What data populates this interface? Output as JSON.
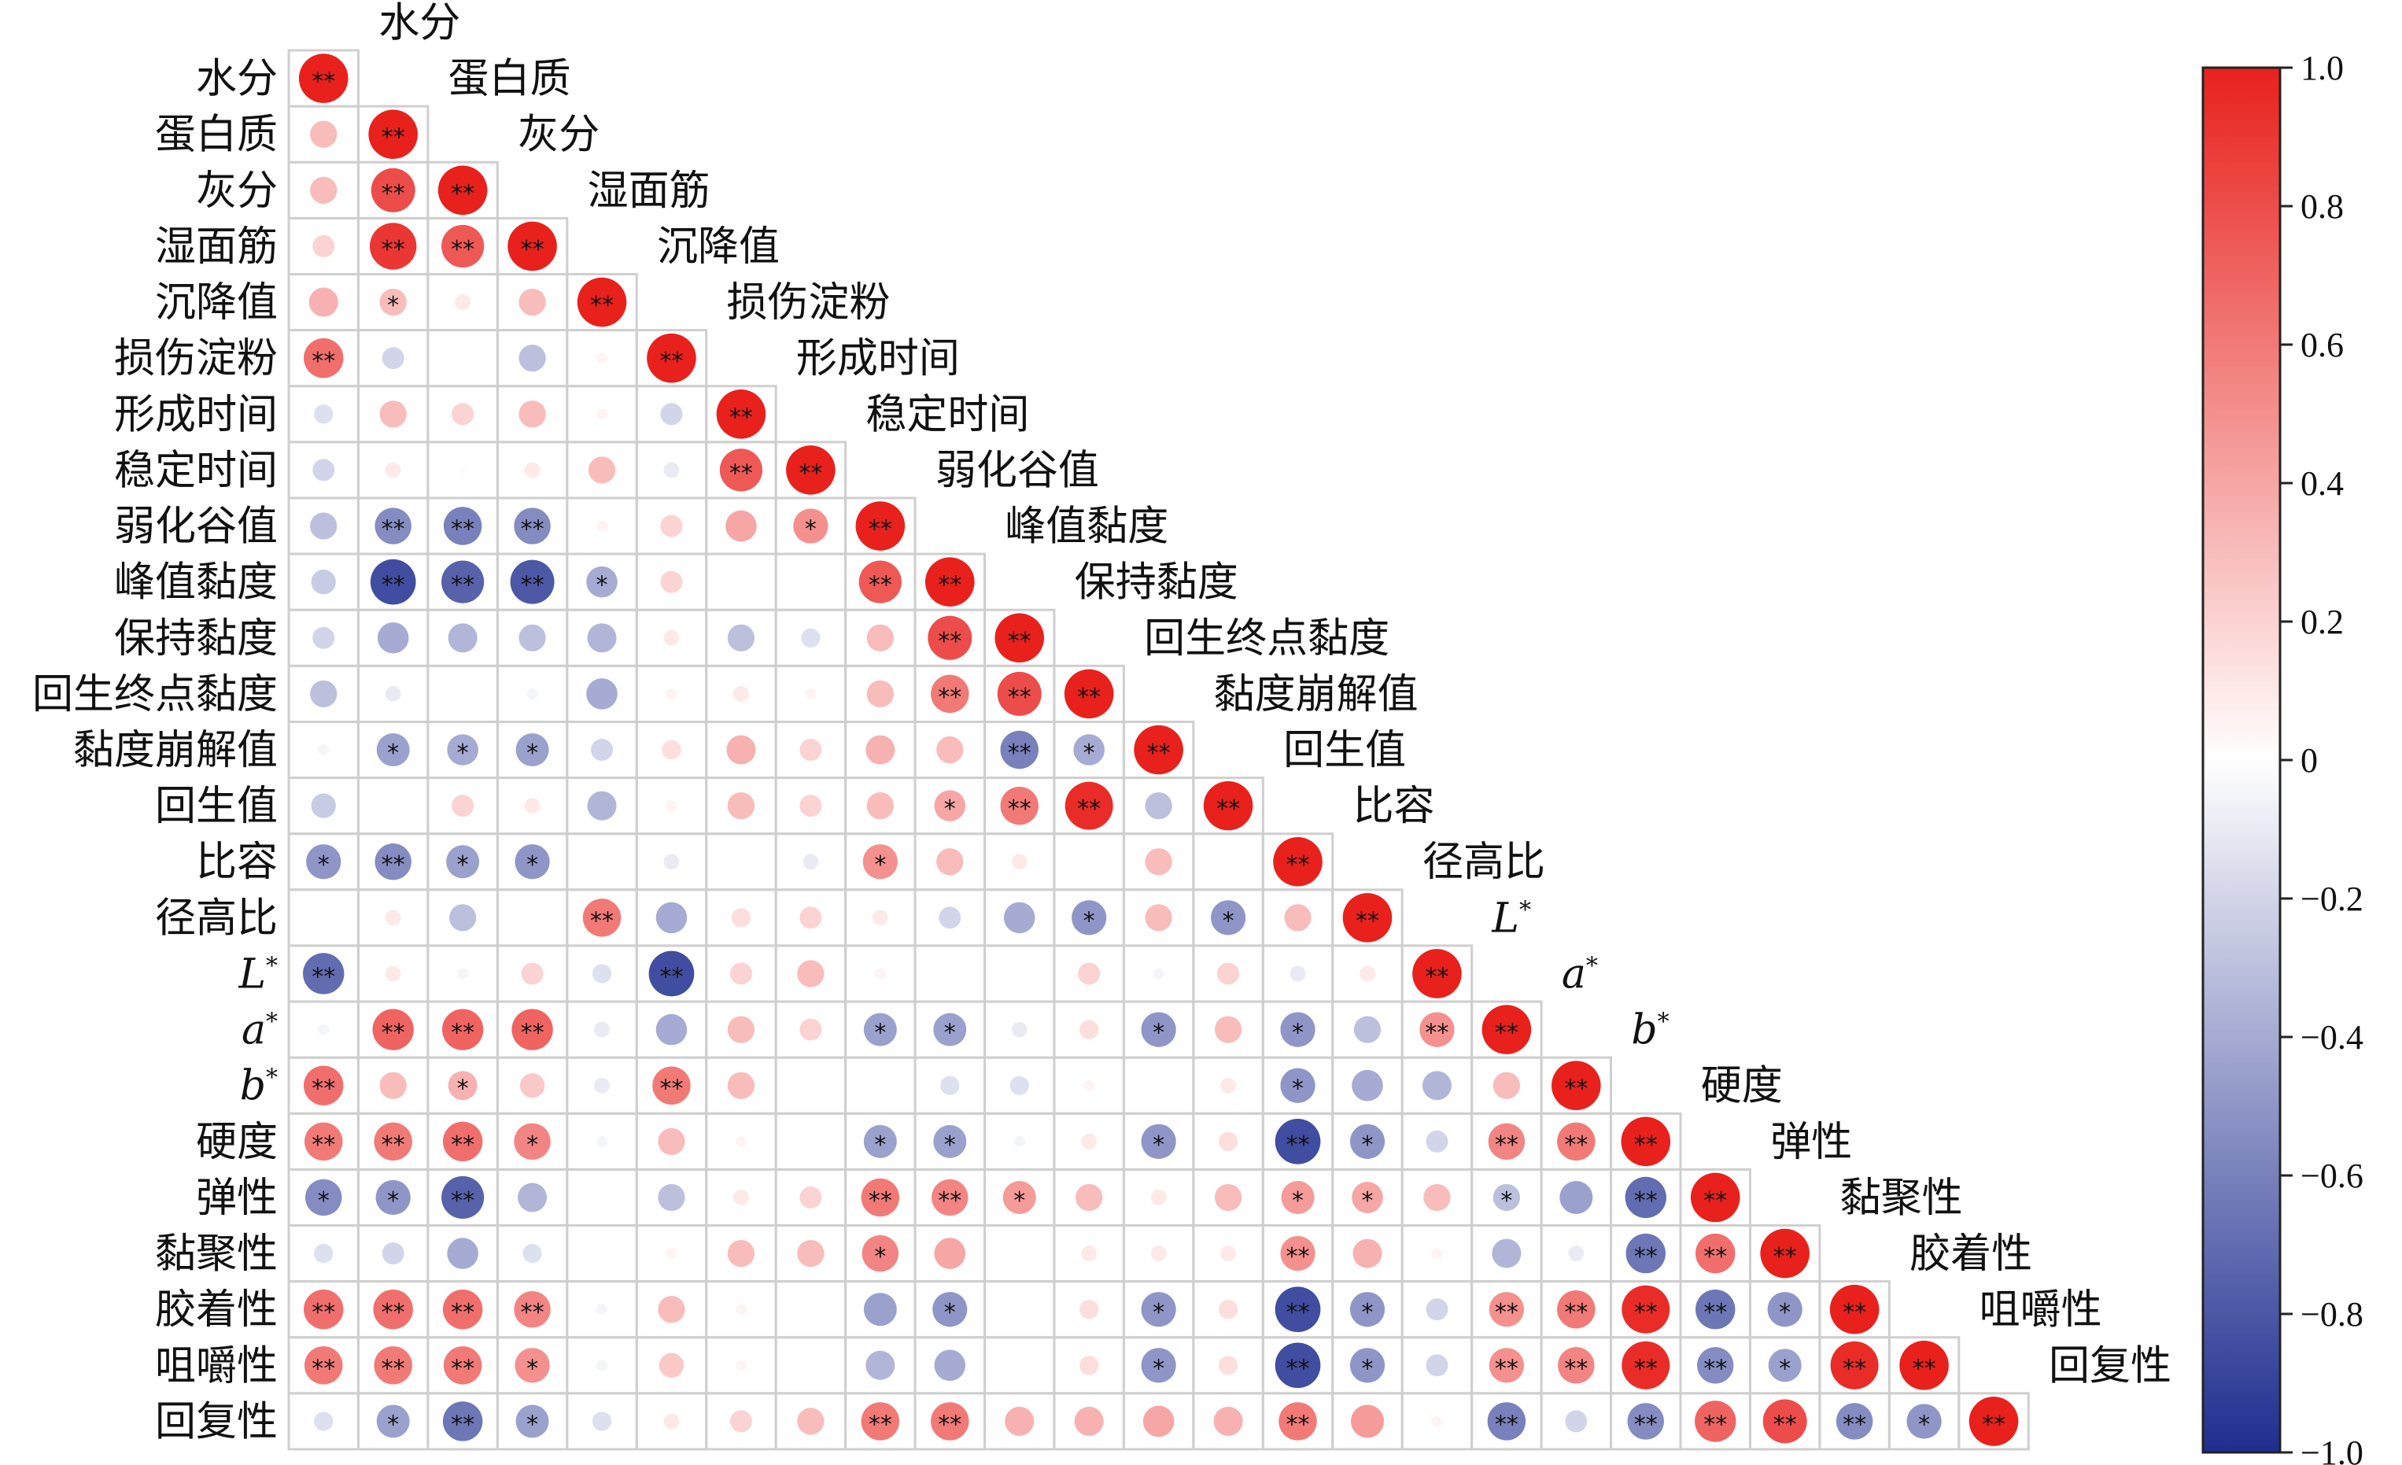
{
  "chart_data": {
    "type": "heatmap",
    "variables": [
      {
        "label": "水分"
      },
      {
        "label": "蛋白质"
      },
      {
        "label": "灰分"
      },
      {
        "label": "湿面筋"
      },
      {
        "label": "沉降值"
      },
      {
        "label": "损伤淀粉"
      },
      {
        "label": "形成时间"
      },
      {
        "label": "稳定时间"
      },
      {
        "label": "弱化谷值"
      },
      {
        "label": "峰值黏度"
      },
      {
        "label": "保持黏度"
      },
      {
        "label": "回生终点黏度"
      },
      {
        "label": "黏度崩解值"
      },
      {
        "label": "回生值"
      },
      {
        "label": "比容"
      },
      {
        "label": "径高比"
      },
      {
        "label": "L",
        "sup": "*",
        "italic": true
      },
      {
        "label": "a",
        "sup": "*",
        "italic": true
      },
      {
        "label": "b",
        "sup": "*",
        "italic": true
      },
      {
        "label": "硬度"
      },
      {
        "label": "弹性"
      },
      {
        "label": "黏聚性"
      },
      {
        "label": "胶着性"
      },
      {
        "label": "咀嚼性"
      },
      {
        "label": "回复性"
      }
    ],
    "matrix": [
      [
        1.0
      ],
      [
        0.3,
        1.0
      ],
      [
        0.3,
        0.8,
        1.0
      ],
      [
        0.2,
        0.9,
        0.75,
        1.0
      ],
      [
        0.35,
        0.3,
        0.1,
        0.3,
        1.0
      ],
      [
        0.65,
        -0.2,
        0.0,
        -0.3,
        0.05,
        1.0
      ],
      [
        -0.15,
        0.3,
        0.2,
        0.3,
        0.05,
        -0.2,
        1.0
      ],
      [
        -0.2,
        0.1,
        0.02,
        0.1,
        0.3,
        -0.1,
        0.75,
        1.0
      ],
      [
        -0.3,
        -0.55,
        -0.6,
        -0.55,
        0.05,
        0.2,
        0.4,
        0.5,
        1.0
      ],
      [
        -0.25,
        -0.85,
        -0.75,
        -0.8,
        -0.4,
        0.2,
        0.0,
        0.0,
        0.75,
        1.0
      ],
      [
        -0.2,
        -0.4,
        -0.35,
        -0.3,
        -0.35,
        0.1,
        -0.3,
        -0.15,
        0.3,
        0.8,
        1.0
      ],
      [
        -0.3,
        -0.1,
        0.0,
        -0.05,
        -0.4,
        0.05,
        0.1,
        0.05,
        0.3,
        0.6,
        0.8,
        1.0
      ],
      [
        -0.05,
        -0.45,
        -0.4,
        -0.45,
        -0.2,
        0.15,
        0.35,
        0.2,
        0.35,
        0.3,
        -0.6,
        -0.4,
        1.0
      ],
      [
        -0.25,
        0.0,
        0.2,
        0.1,
        -0.35,
        0.05,
        0.3,
        0.2,
        0.3,
        0.4,
        0.6,
        0.95,
        -0.3,
        1.0
      ],
      [
        -0.5,
        -0.55,
        -0.45,
        -0.5,
        0.0,
        -0.1,
        0.0,
        -0.1,
        0.5,
        0.3,
        0.1,
        0.0,
        0.3,
        0.0,
        1.0
      ],
      [
        0.0,
        0.1,
        -0.3,
        0.0,
        0.6,
        -0.4,
        0.15,
        0.2,
        0.1,
        -0.2,
        -0.4,
        -0.5,
        0.3,
        -0.5,
        0.3,
        1.0
      ],
      [
        -0.7,
        0.1,
        -0.05,
        0.2,
        -0.15,
        -0.85,
        0.2,
        0.3,
        0.05,
        0.0,
        0.0,
        0.2,
        -0.05,
        0.2,
        -0.1,
        0.1,
        1.0
      ],
      [
        -0.05,
        0.7,
        0.7,
        0.7,
        -0.1,
        -0.4,
        0.3,
        0.2,
        -0.45,
        -0.45,
        -0.1,
        0.15,
        -0.5,
        0.3,
        -0.5,
        -0.3,
        0.5,
        1.0
      ],
      [
        0.65,
        0.3,
        0.35,
        0.25,
        -0.1,
        0.6,
        0.3,
        0.0,
        0.0,
        -0.15,
        -0.15,
        0.05,
        0.0,
        0.1,
        -0.5,
        -0.4,
        -0.35,
        0.3,
        1.0
      ],
      [
        0.6,
        0.6,
        0.65,
        0.55,
        -0.05,
        0.3,
        0.05,
        0.0,
        -0.45,
        -0.45,
        -0.05,
        0.1,
        -0.5,
        0.15,
        -0.85,
        -0.5,
        -0.2,
        0.55,
        0.6,
        1.0
      ],
      [
        -0.55,
        -0.5,
        -0.75,
        -0.35,
        0.0,
        -0.3,
        0.1,
        0.2,
        0.6,
        0.55,
        0.45,
        0.3,
        0.1,
        0.3,
        0.45,
        0.4,
        0.3,
        -0.3,
        -0.45,
        -0.7,
        1.0
      ],
      [
        -0.15,
        -0.2,
        -0.4,
        -0.15,
        0.0,
        0.05,
        0.3,
        0.3,
        0.55,
        0.4,
        0.0,
        0.1,
        0.1,
        0.1,
        0.5,
        0.35,
        0.05,
        -0.35,
        -0.1,
        -0.65,
        0.65,
        1.0
      ],
      [
        0.65,
        0.65,
        0.65,
        0.55,
        -0.05,
        0.3,
        0.05,
        0.0,
        -0.45,
        -0.5,
        0.0,
        0.15,
        -0.5,
        0.15,
        -0.85,
        -0.5,
        -0.2,
        0.5,
        0.6,
        0.95,
        -0.65,
        -0.5,
        1.0
      ],
      [
        0.6,
        0.6,
        0.6,
        0.5,
        -0.05,
        0.25,
        0.05,
        0.0,
        -0.35,
        -0.4,
        0.0,
        0.15,
        -0.5,
        0.15,
        -0.85,
        -0.5,
        -0.2,
        0.5,
        0.55,
        0.95,
        -0.55,
        -0.45,
        0.95,
        1.0
      ],
      [
        -0.15,
        -0.45,
        -0.65,
        -0.45,
        -0.15,
        0.1,
        0.2,
        0.3,
        0.6,
        0.6,
        0.35,
        0.35,
        0.4,
        0.35,
        0.6,
        0.45,
        0.05,
        -0.6,
        -0.2,
        -0.55,
        0.7,
        0.8,
        -0.55,
        -0.5,
        1.0
      ]
    ],
    "significance": [
      [
        "**"
      ],
      [
        "",
        "**"
      ],
      [
        "",
        "**",
        "**"
      ],
      [
        "",
        "**",
        "**",
        "**"
      ],
      [
        "",
        "*",
        "",
        "",
        "**"
      ],
      [
        "**",
        "",
        "",
        "",
        "",
        "**"
      ],
      [
        "",
        "",
        "",
        "",
        "",
        "",
        "**"
      ],
      [
        "",
        "",
        "",
        "",
        "",
        "",
        "**",
        "**"
      ],
      [
        "",
        "**",
        "**",
        "**",
        "",
        "",
        "",
        "*",
        "**"
      ],
      [
        "",
        "**",
        "**",
        "**",
        "*",
        "",
        "",
        "",
        "**",
        "**"
      ],
      [
        "",
        "",
        "",
        "",
        "",
        "",
        "",
        "",
        "",
        "**",
        "**"
      ],
      [
        "",
        "",
        "",
        "",
        "",
        "",
        "",
        "",
        "",
        "**",
        "**",
        "**"
      ],
      [
        "",
        "*",
        "*",
        "*",
        "",
        "",
        "",
        "",
        "",
        "",
        "**",
        "*",
        "**"
      ],
      [
        "",
        "",
        "",
        "",
        "",
        "",
        "",
        "",
        "",
        "*",
        "**",
        "**",
        "",
        "**"
      ],
      [
        "*",
        "**",
        "*",
        "*",
        "",
        "",
        "",
        "",
        "*",
        "",
        "",
        "",
        "",
        "",
        "**"
      ],
      [
        "",
        "",
        "",
        "",
        "**",
        "",
        "",
        "",
        "",
        "",
        "",
        "*",
        "",
        "*",
        "",
        "**"
      ],
      [
        "**",
        "",
        "",
        "",
        "",
        "**",
        "",
        "",
        "",
        "",
        "",
        "",
        "",
        "",
        "",
        "",
        "**"
      ],
      [
        "",
        "**",
        "**",
        "**",
        "",
        "",
        "",
        "",
        "*",
        "*",
        "",
        "",
        "*",
        "",
        "*",
        "",
        "**",
        "**"
      ],
      [
        "**",
        "",
        "*",
        "",
        "",
        "**",
        "",
        "",
        "",
        "",
        "",
        "",
        "",
        "",
        "*",
        "",
        "",
        "",
        "**"
      ],
      [
        "**",
        "**",
        "**",
        "*",
        "",
        "",
        "",
        "",
        "*",
        "*",
        "",
        "",
        "*",
        "",
        "**",
        "*",
        "",
        "**",
        "**",
        "**"
      ],
      [
        "*",
        "*",
        "**",
        "",
        "",
        "",
        "",
        "",
        "**",
        "**",
        "*",
        "",
        "",
        "",
        "*",
        "*",
        "",
        "*",
        "",
        "**",
        "**"
      ],
      [
        "",
        "",
        "",
        "",
        "",
        "",
        "",
        "",
        "*",
        "",
        "",
        "",
        "",
        "",
        "**",
        "",
        "",
        "",
        "",
        "**",
        "**",
        "**"
      ],
      [
        "**",
        "**",
        "**",
        "**",
        "",
        "",
        "",
        "",
        "",
        "*",
        "",
        "",
        "*",
        "",
        "**",
        "*",
        "",
        "**",
        "**",
        "**",
        "**",
        "*",
        "**"
      ],
      [
        "**",
        "**",
        "**",
        "*",
        "",
        "",
        "",
        "",
        "",
        "",
        "",
        "",
        "*",
        "",
        "**",
        "*",
        "",
        "**",
        "**",
        "**",
        "**",
        "*",
        "**",
        "**"
      ],
      [
        "",
        "*",
        "**",
        "*",
        "",
        "",
        "",
        "",
        "**",
        "**",
        "",
        "",
        "",
        "",
        "**",
        "",
        "",
        "**",
        "",
        "**",
        "**",
        "**",
        "**",
        "*",
        "**"
      ]
    ],
    "colorbar": {
      "min": -1.0,
      "max": 1.0,
      "ticks": [
        "1.0",
        "0.8",
        "0.6",
        "0.4",
        "0.2",
        "0",
        "−0.2",
        "−0.4",
        "−0.6",
        "−0.8",
        "−1.0"
      ],
      "colors": {
        "negative": "#1f2d8f",
        "zero": "#ffffff",
        "positive": "#e8211d"
      }
    }
  }
}
